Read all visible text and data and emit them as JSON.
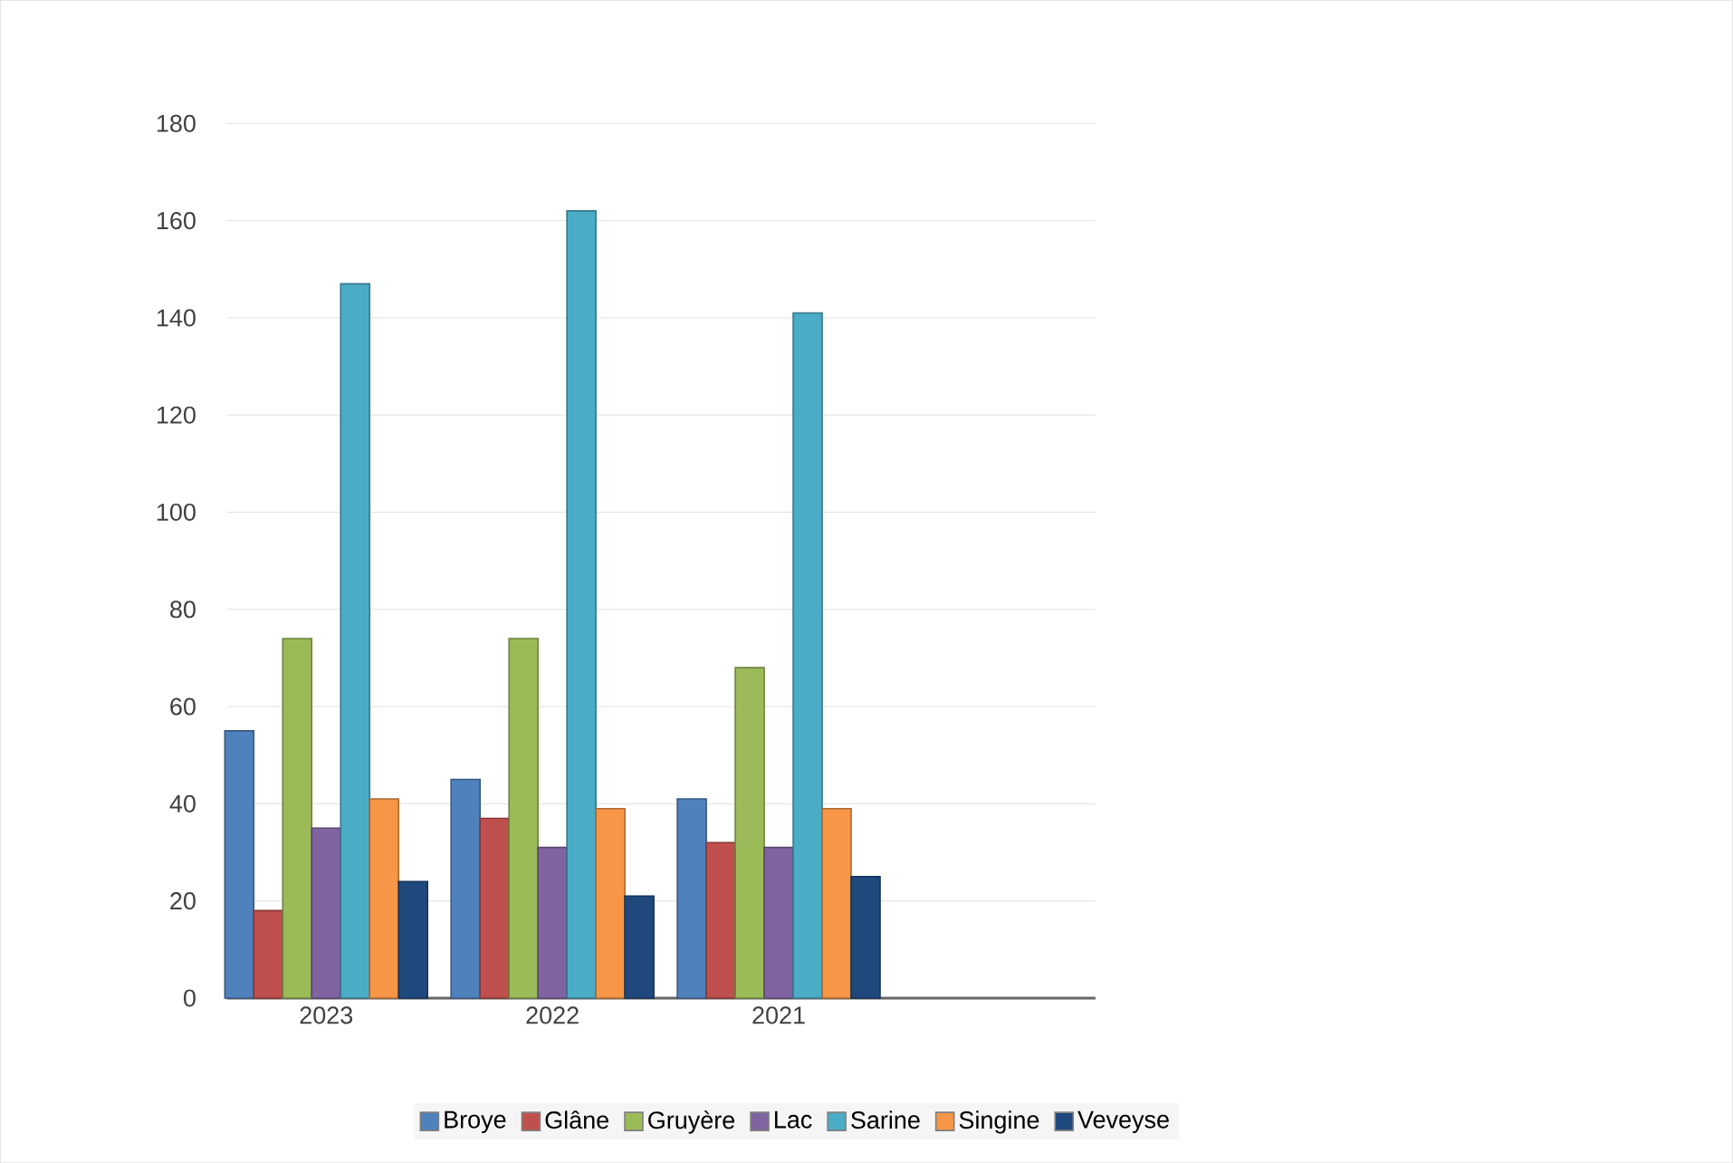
{
  "chart_data": {
    "type": "bar",
    "categories": [
      "2023",
      "2022",
      "2021"
    ],
    "series": [
      {
        "name": "Broye",
        "color": "#4f81bd",
        "values": [
          55,
          45,
          41
        ]
      },
      {
        "name": "Glâne",
        "color": "#c0504d",
        "values": [
          18,
          37,
          32
        ]
      },
      {
        "name": "Gruyère",
        "color": "#9bbb59",
        "values": [
          74,
          74,
          68
        ]
      },
      {
        "name": "Lac",
        "color": "#8064a2",
        "values": [
          35,
          31,
          31
        ]
      },
      {
        "name": "Sarine",
        "color": "#4bacc6",
        "values": [
          147,
          162,
          141
        ]
      },
      {
        "name": "Singine",
        "color": "#f79646",
        "values": [
          41,
          39,
          39
        ]
      },
      {
        "name": "Veveyse",
        "color": "#1f497d",
        "values": [
          24,
          21,
          25
        ]
      }
    ],
    "ylim": [
      0,
      180
    ],
    "yticks": [
      0,
      20,
      40,
      60,
      80,
      100,
      120,
      140,
      160,
      180
    ],
    "grid": "y",
    "legend": "bottom"
  }
}
